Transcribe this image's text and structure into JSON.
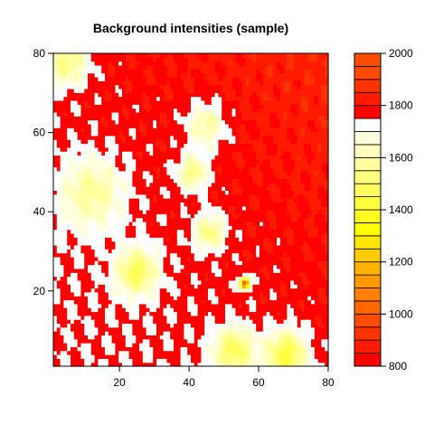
{
  "chart_data": {
    "type": "heatmap",
    "title": "Background intensities (sample)",
    "xlabel": "",
    "ylabel": "",
    "xlim": [
      1,
      80
    ],
    "ylim": [
      1,
      80
    ],
    "x_ticks": [
      20,
      40,
      60,
      80
    ],
    "y_ticks": [
      20,
      40,
      60,
      80
    ],
    "grid": false,
    "colorbar": {
      "range": [
        800,
        2000
      ],
      "step": 50,
      "ticks": [
        800,
        1000,
        1200,
        1400,
        1600,
        1800,
        2000
      ],
      "colors_low_to_high": [
        "#ff0000",
        "#ff1a00",
        "#ff3300",
        "#ff4c00",
        "#ff6600",
        "#ff8000",
        "#ff9900",
        "#ffb200",
        "#ffcc00",
        "#ffe600",
        "#ffff00",
        "#ffff20",
        "#ffff40",
        "#ffff60",
        "#ffff80",
        "#ffff9f",
        "#ffffbf",
        "#ffffdf",
        "#ffffff",
        "#ff0000",
        "#ff1a00",
        "#ff3300",
        "#ff4c00",
        "#ff4c00"
      ]
    },
    "background_level": 1750,
    "gradient_top_right": 1850,
    "features": [
      {
        "x": 5,
        "y": 78,
        "level": 1500,
        "spread": 4
      },
      {
        "x": 12,
        "y": 45,
        "level": 1550,
        "spread": 6
      },
      {
        "x": 25,
        "y": 25,
        "level": 1450,
        "spread": 4
      },
      {
        "x": 41,
        "y": 50,
        "level": 1500,
        "spread": 3
      },
      {
        "x": 46,
        "y": 35,
        "level": 1500,
        "spread": 3
      },
      {
        "x": 45,
        "y": 62,
        "level": 1550,
        "spread": 4
      },
      {
        "x": 53,
        "y": 5,
        "level": 1450,
        "spread": 4
      },
      {
        "x": 68,
        "y": 4,
        "level": 1400,
        "spread": 4
      },
      {
        "x": 56,
        "y": 22,
        "level": 900,
        "spread": 1
      }
    ]
  }
}
